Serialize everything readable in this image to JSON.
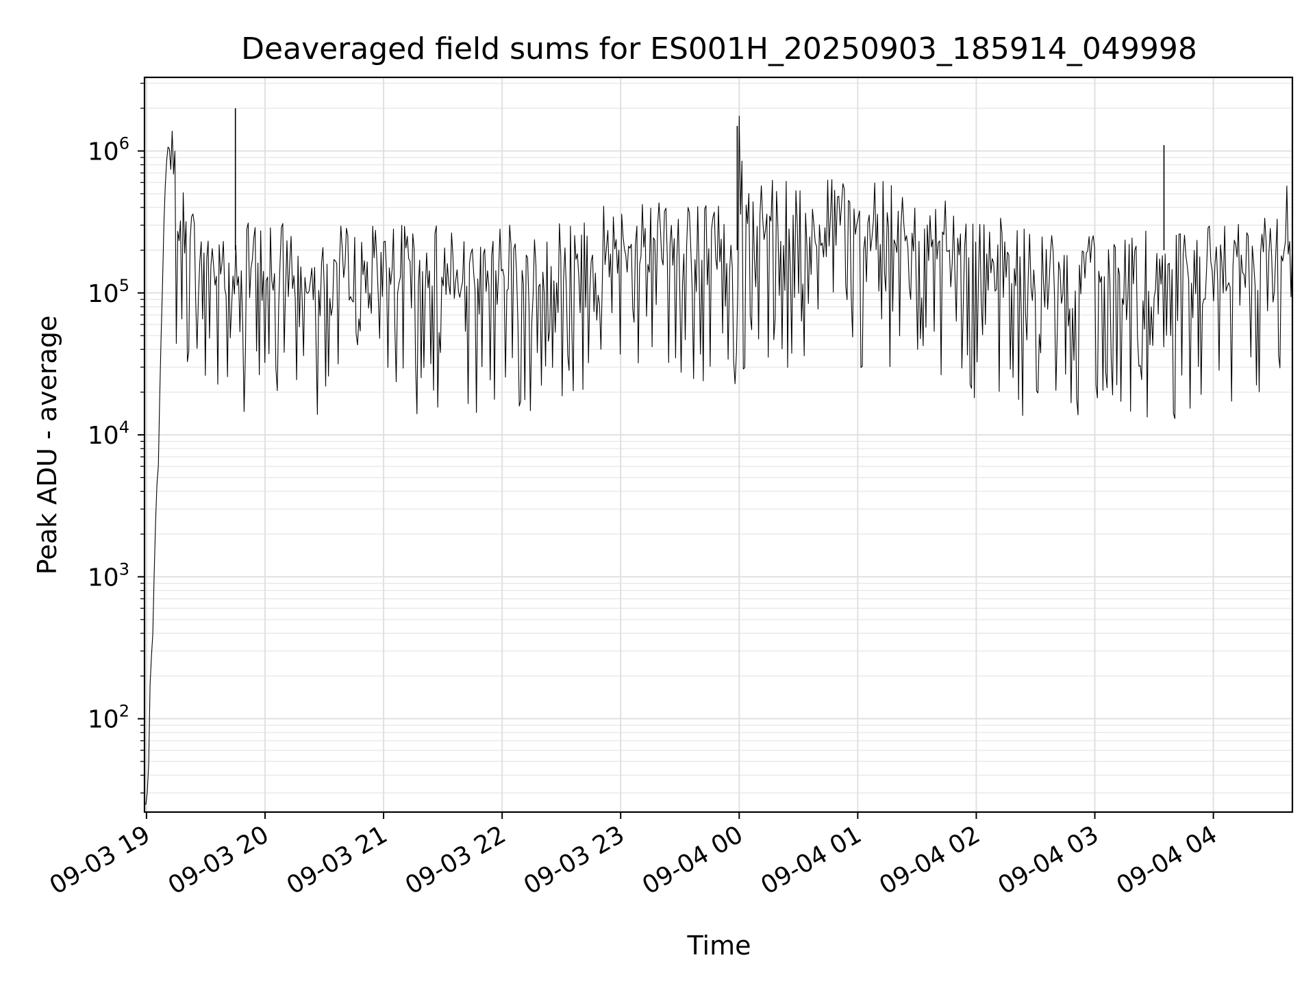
{
  "chart_data": {
    "type": "line",
    "title": "Deaveraged field sums for ES001H_20250903_185914_049998",
    "xlabel": "Time",
    "ylabel": "Peak ADU - average",
    "yscale": "log",
    "ylim": [
      22,
      3300000
    ],
    "xlim": [
      "2025-09-03 18:59",
      "2025-09-04 04:40"
    ],
    "grid": true,
    "x_tick_labels": [
      "09-03 19",
      "09-03 20",
      "09-03 21",
      "09-03 22",
      "09-03 23",
      "09-04 00",
      "09-04 01",
      "09-04 02",
      "09-04 03",
      "09-04 04"
    ],
    "x_ticks": [
      "2025-09-03 19:00",
      "2025-09-03 20:00",
      "2025-09-03 21:00",
      "2025-09-03 22:00",
      "2025-09-03 23:00",
      "2025-09-04 00:00",
      "2025-09-04 01:00",
      "2025-09-04 02:00",
      "2025-09-04 03:00",
      "2025-09-04 04:00"
    ],
    "y_tick_labels": [
      {
        "base": "10",
        "exp": "2",
        "value": 100
      },
      {
        "base": "10",
        "exp": "3",
        "value": 1000
      },
      {
        "base": "10",
        "exp": "4",
        "value": 10000
      },
      {
        "base": "10",
        "exp": "5",
        "value": 100000
      },
      {
        "base": "10",
        "exp": "6",
        "value": 1000000
      }
    ],
    "series": [
      {
        "color": "#000000",
        "x": [
          "2025-09-03 19:00",
          "2025-09-03 19:01",
          "2025-09-03 19:02",
          "2025-09-03 19:03",
          "2025-09-03 19:04",
          "2025-09-03 19:05",
          "2025-09-03 19:06",
          "2025-09-03 19:07",
          "2025-09-03 19:08",
          "2025-09-03 19:09",
          "2025-09-03 19:10",
          "2025-09-03 19:11",
          "2025-09-03 19:12",
          "2025-09-03 19:13",
          "2025-09-03 19:15",
          "2025-09-03 19:17",
          "2025-09-03 19:20",
          "2025-09-03 19:25",
          "2025-09-03 19:30",
          "2025-09-03 19:35",
          "2025-09-03 19:40",
          "2025-09-03 19:45",
          "2025-09-03 20:00",
          "2025-09-03 20:30",
          "2025-09-03 21:00",
          "2025-09-03 21:30",
          "2025-09-03 22:00",
          "2025-09-03 22:30",
          "2025-09-03 23:00",
          "2025-09-03 23:30",
          "2025-09-03 23:59",
          "2025-09-04 00:00",
          "2025-09-04 00:02",
          "2025-09-04 00:10",
          "2025-09-04 00:30",
          "2025-09-04 01:00",
          "2025-09-04 01:30",
          "2025-09-04 02:00",
          "2025-09-04 02:30",
          "2025-09-04 03:00",
          "2025-09-04 03:30",
          "2025-09-04 04:00",
          "2025-09-04 04:20",
          "2025-09-04 04:40"
        ],
        "y": [
          25,
          40,
          250,
          300,
          1200,
          4000,
          6000,
          30000,
          100000,
          400000,
          800000,
          1100000,
          1000000,
          700000,
          500000,
          350000,
          300000,
          200000,
          200000,
          180000,
          170000,
          160000,
          160000,
          150000,
          150000,
          160000,
          150000,
          180000,
          230000,
          240000,
          220000,
          1500000,
          300000,
          320000,
          300000,
          330000,
          320000,
          200000,
          130000,
          140000,
          140000,
          150000,
          160000,
          350000
        ]
      }
    ],
    "spikes": [
      {
        "x": "2025-09-03 19:45",
        "y": 2000000
      },
      {
        "x": "2025-09-03 23:59",
        "y": 1500000
      },
      {
        "x": "2025-09-04 03:35",
        "y": 1100000
      }
    ]
  }
}
